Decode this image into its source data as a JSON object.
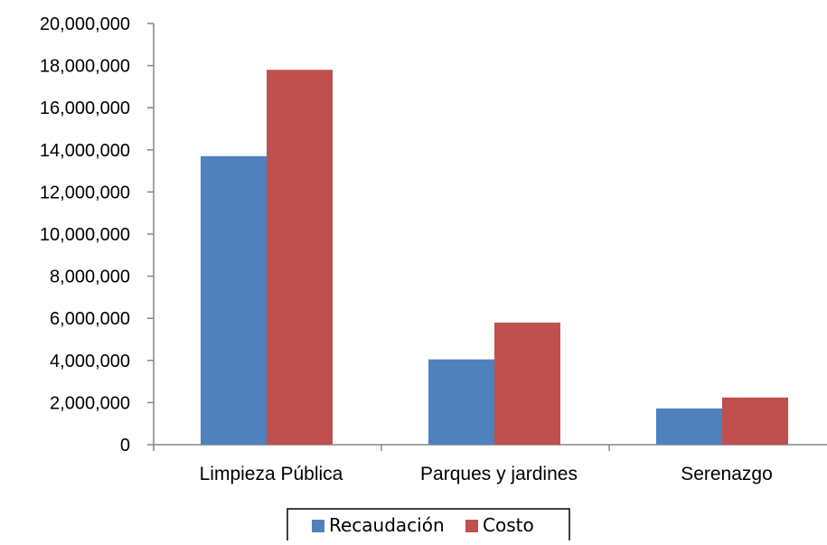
{
  "chart_data": {
    "type": "bar",
    "title": "",
    "xlabel": "",
    "ylabel": "",
    "categories": [
      "Limpieza Pública",
      "Parques y jardines",
      "Serenazgo"
    ],
    "series": [
      {
        "name": "Recaudación",
        "color": "#4F81BD",
        "values": [
          13700000,
          4050000,
          1720000
        ]
      },
      {
        "name": "Costo",
        "color": "#C0504D",
        "values": [
          17800000,
          5800000,
          2240000
        ]
      }
    ],
    "ylim": [
      0,
      20000000
    ],
    "yticks": [
      "0",
      "2,000,000",
      "4,000,000",
      "6,000,000",
      "8,000,000",
      "10,000,000",
      "12,000,000",
      "14,000,000",
      "16,000,000",
      "18,000,000",
      "20,000,000"
    ],
    "ytick_values": [
      0,
      2000000,
      4000000,
      6000000,
      8000000,
      10000000,
      12000000,
      14000000,
      16000000,
      18000000,
      20000000
    ],
    "grid": false,
    "legend": {
      "position": "bottom",
      "entries": [
        "Recaudación",
        "Costo"
      ]
    }
  }
}
